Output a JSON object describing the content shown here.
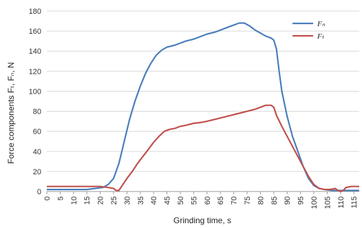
{
  "chart_data": {
    "type": "line",
    "xlabel": "Grinding time, s",
    "ylabel": "Force components Fₜ, Fₙ, N",
    "xlim": [
      0,
      117
    ],
    "ylim": [
      0,
      180
    ],
    "x_ticks": [
      0,
      5,
      10,
      15,
      20,
      25,
      30,
      35,
      40,
      45,
      50,
      55,
      60,
      65,
      70,
      75,
      80,
      85,
      90,
      95,
      100,
      105,
      110,
      115
    ],
    "y_ticks": [
      0,
      20,
      40,
      60,
      80,
      100,
      120,
      140,
      160,
      180
    ],
    "grid": "horizontal",
    "legend_position": "top-right",
    "series": [
      {
        "name": "Fₙ",
        "color": "#4a7ebb",
        "points": [
          [
            0,
            2
          ],
          [
            5,
            2
          ],
          [
            10,
            2
          ],
          [
            15,
            2
          ],
          [
            18,
            3
          ],
          [
            21,
            4
          ],
          [
            23,
            7
          ],
          [
            25,
            13
          ],
          [
            27,
            28
          ],
          [
            29,
            50
          ],
          [
            31,
            72
          ],
          [
            33,
            90
          ],
          [
            35,
            105
          ],
          [
            37,
            118
          ],
          [
            39,
            128
          ],
          [
            41,
            136
          ],
          [
            43,
            141
          ],
          [
            45,
            144
          ],
          [
            48,
            146
          ],
          [
            50,
            148
          ],
          [
            52,
            150
          ],
          [
            55,
            152
          ],
          [
            58,
            155
          ],
          [
            60,
            157
          ],
          [
            63,
            159
          ],
          [
            66,
            162
          ],
          [
            69,
            165
          ],
          [
            72,
            168
          ],
          [
            74,
            168
          ],
          [
            76,
            165
          ],
          [
            78,
            161
          ],
          [
            80,
            158
          ],
          [
            82,
            155
          ],
          [
            84,
            153
          ],
          [
            85,
            151
          ],
          [
            86,
            142
          ],
          [
            87,
            120
          ],
          [
            88,
            100
          ],
          [
            90,
            75
          ],
          [
            92,
            55
          ],
          [
            94,
            40
          ],
          [
            96,
            25
          ],
          [
            98,
            13
          ],
          [
            100,
            6
          ],
          [
            102,
            3
          ],
          [
            104,
            2
          ],
          [
            107,
            1
          ],
          [
            110,
            1
          ],
          [
            113,
            1
          ],
          [
            117,
            1
          ]
        ]
      },
      {
        "name": "Fₜ",
        "color": "#c0504d",
        "points": [
          [
            0,
            5
          ],
          [
            5,
            5
          ],
          [
            10,
            5
          ],
          [
            15,
            5
          ],
          [
            20,
            5
          ],
          [
            23,
            4
          ],
          [
            25,
            3
          ],
          [
            26,
            1
          ],
          [
            27,
            1
          ],
          [
            28,
            5
          ],
          [
            30,
            13
          ],
          [
            32,
            20
          ],
          [
            34,
            28
          ],
          [
            36,
            35
          ],
          [
            38,
            42
          ],
          [
            40,
            49
          ],
          [
            42,
            55
          ],
          [
            44,
            60
          ],
          [
            46,
            62
          ],
          [
            48,
            63
          ],
          [
            50,
            65
          ],
          [
            52,
            66
          ],
          [
            55,
            68
          ],
          [
            58,
            69
          ],
          [
            60,
            70
          ],
          [
            63,
            72
          ],
          [
            66,
            74
          ],
          [
            69,
            76
          ],
          [
            72,
            78
          ],
          [
            75,
            80
          ],
          [
            78,
            82
          ],
          [
            80,
            84
          ],
          [
            82,
            86
          ],
          [
            84,
            86
          ],
          [
            85,
            84
          ],
          [
            86,
            76
          ],
          [
            88,
            65
          ],
          [
            90,
            55
          ],
          [
            92,
            45
          ],
          [
            94,
            35
          ],
          [
            96,
            25
          ],
          [
            98,
            15
          ],
          [
            100,
            7
          ],
          [
            102,
            3
          ],
          [
            104,
            2
          ],
          [
            106,
            2
          ],
          [
            108,
            3
          ],
          [
            109,
            1
          ],
          [
            110,
            0
          ],
          [
            111,
            1
          ],
          [
            112,
            4
          ],
          [
            114,
            5
          ],
          [
            117,
            5
          ]
        ]
      }
    ]
  }
}
